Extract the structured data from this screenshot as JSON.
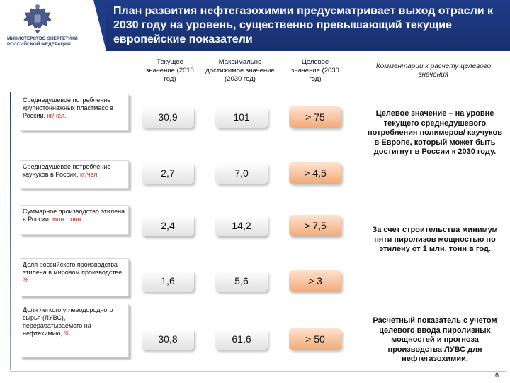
{
  "header": {
    "ministry": "Министерство энергетики Российской Федерации",
    "title": "План развития нефтегазохимии предусматривает выход отрасли к 2030 году на уровень, существенно превышающий текущие европейские показатели"
  },
  "columns": {
    "current": "Текущее значение (2010 год)",
    "max": "Максимально достижимое значение (2030 год)",
    "target": "Целевое значение (2030 год)",
    "comment": "Комментарии к расчету целевого значения"
  },
  "rows": [
    {
      "label": "Среднедушевое потребление крупнотоннажных пластмасс в России, ",
      "unit": "кг/чел.",
      "current": "30,9",
      "max": "101",
      "target": "> 75"
    },
    {
      "label": "Среднедушевое потребление каучуков в России, ",
      "unit": "кг/чел.",
      "current": "2,7",
      "max": "7,0",
      "target": "> 4,5"
    },
    {
      "label": "Суммарное производство этилена в России, ",
      "unit": "млн. тонн",
      "current": "2,4",
      "max": "14,2",
      "target": "> 7,5"
    },
    {
      "label": "Доля российского производства этилена в мировом производстве, ",
      "unit": "%",
      "current": "1,6",
      "max": "5,6",
      "target": "> 3"
    },
    {
      "label": "Доля легкого углеводородного сырья (ЛУВС), перерабатываемого на нефтехимию, ",
      "unit": "%",
      "current": "30,8",
      "max": "61,6",
      "target": "> 50"
    }
  ],
  "comments": {
    "c1": "Целевое значение – на уровне текущего среднедушевого потребления полимеров/ каучуков в Европе, который может быть достигнут в России к 2030 году.",
    "c2": "За счет строительства минимум пяти пиролизов мощностью по этилену от 1 млн. тонн в год.",
    "c3": "Расчетный показатель с учетом целевого ввода пиролизных мощностей и прогноза производства ЛУВС для нефтегазохимии."
  },
  "page_number": "6",
  "colors": {
    "title_bar": "#1f3c88",
    "target_cell": "#f8c4a0",
    "unit_text": "#c0392b"
  },
  "icons": {
    "emblem": "russian-coat-of-arms-icon"
  }
}
